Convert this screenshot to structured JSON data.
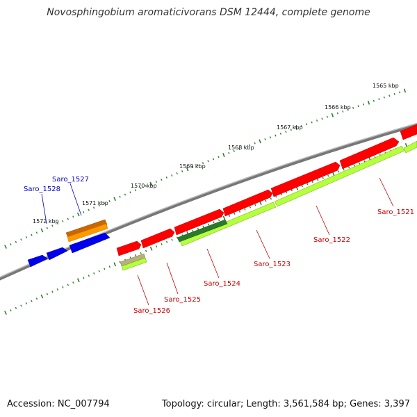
{
  "title": "Novosphingobium aromaticivorans DSM 12444, complete genome",
  "footer": {
    "accession": "Accession: NC_007794",
    "info": "Topology: circular; Length: 3,561,584 bp; Genes: 3,397"
  },
  "colors": {
    "backbone": "#888888",
    "tick": "#2f7d2f",
    "forward_gene": "#ff0000",
    "reverse_gene": "#0000ee",
    "orange_gene": "#ff9900",
    "lime_gene": "#b5ff3d",
    "darkgreen_gene": "#2a7a2a",
    "tan_gene": "#b8b07a",
    "forward_label": "#cc0000",
    "reverse_label": "#0000cc"
  },
  "scale_labels": [
    {
      "text": "1565 kbp"
    },
    {
      "text": "1566 kbp"
    },
    {
      "text": "1567 kbp"
    },
    {
      "text": "1568 kbp"
    },
    {
      "text": "1569 kbp"
    },
    {
      "text": "1570 kbp"
    },
    {
      "text": "1571 kbp"
    },
    {
      "text": "1572 kbp"
    }
  ],
  "gene_labels": [
    {
      "text": "Saro_1521",
      "strand": "forward"
    },
    {
      "text": "Saro_1522",
      "strand": "forward"
    },
    {
      "text": "Saro_1523",
      "strand": "forward"
    },
    {
      "text": "Saro_1524",
      "strand": "forward"
    },
    {
      "text": "Saro_1525",
      "strand": "forward"
    },
    {
      "text": "Saro_1526",
      "strand": "forward"
    },
    {
      "text": "Saro_1527",
      "strand": "reverse"
    },
    {
      "text": "Saro_1528",
      "strand": "reverse"
    }
  ]
}
